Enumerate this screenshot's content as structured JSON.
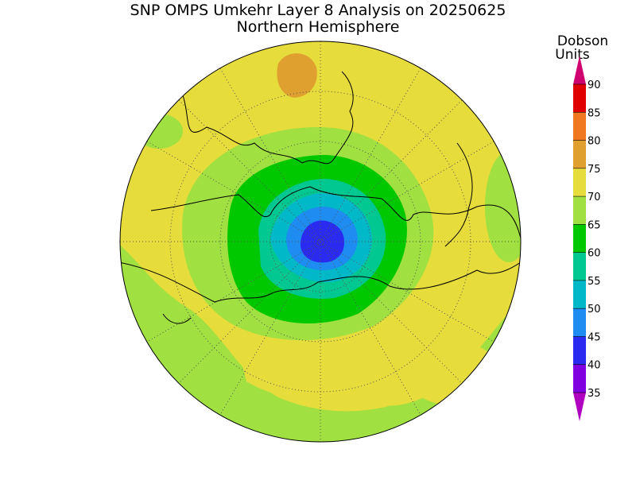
{
  "title": "SNP OMPS Umkehr Layer 8 Analysis on 20250625",
  "subtitle": "Northern Hemisphere",
  "colorbar": {
    "label_lines": [
      "Dobson",
      "Units"
    ],
    "ticks": [
      35,
      40,
      45,
      50,
      55,
      60,
      65,
      70,
      75,
      80,
      85,
      90
    ],
    "colors": [
      "#8000e0",
      "#2a2af0",
      "#1e8cf0",
      "#00b8c8",
      "#00c890",
      "#00c800",
      "#a0e040",
      "#e6dc3c",
      "#e0a030",
      "#f07820",
      "#e00000"
    ],
    "under_color": "#b000c0",
    "over_color": "#d00070"
  }
}
